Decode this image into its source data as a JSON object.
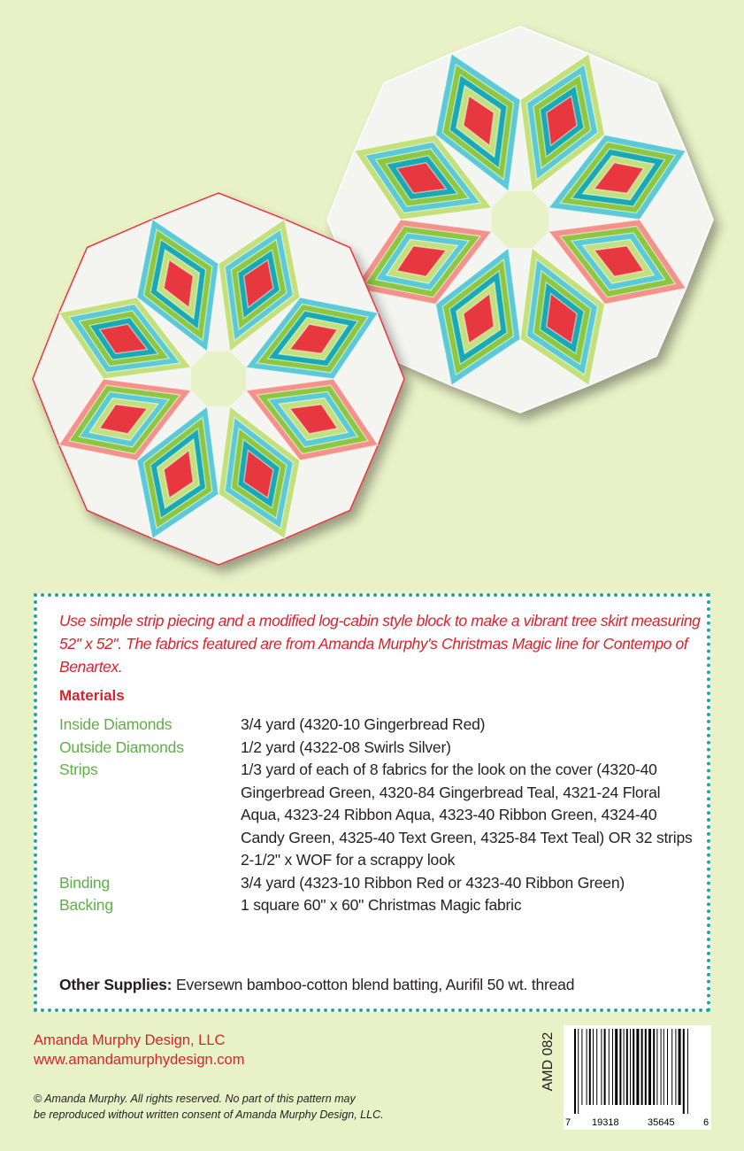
{
  "colors": {
    "background": "#e9f1c6",
    "accent_red": "#d9232c",
    "label_green": "#5fae47",
    "border_teal": "#1aa89c",
    "fabric_red": "#e8383f",
    "fabric_aqua": "#5ccad6",
    "fabric_teal": "#19a9b5",
    "fabric_green": "#8dc63f",
    "fabric_lightgreen": "#c3e07a",
    "fabric_pink": "#f3928a",
    "fabric_white": "#f4f4f1"
  },
  "images": [
    "tree-skirt-quilt-front",
    "tree-skirt-quilt-back"
  ],
  "intro": "Use simple strip piecing and a modified log-cabin style block to make a vibrant tree skirt measuring 52\" x 52\".  The fabrics featured are from Amanda Murphy's Christmas Magic line for Contempo of Benartex.",
  "materials": {
    "heading": "Materials",
    "rows": [
      {
        "label": "Inside Diamonds",
        "value": "3/4 yard (4320-10 Gingerbread Red)"
      },
      {
        "label": "Outside Diamonds",
        "value": "1/2 yard (4322-08 Swirls Silver)"
      },
      {
        "label": "Strips",
        "value": "1/3 yard of each of 8 fabrics for the look on the cover (4320-40 Gingerbread Green, 4320-84 Gingerbread Teal, 4321-24 Floral Aqua, 4323-24 Ribbon Aqua, 4323-40 Ribbon Green, 4324-40 Candy Green, 4325-40 Text Green, 4325-84 Text Teal) OR 32 strips 2-1/2\" x WOF for a scrappy look"
      },
      {
        "label": "Binding",
        "value": "3/4 yard (4323-10 Ribbon Red or 4323-40 Ribbon Green)"
      },
      {
        "label": "Backing",
        "value": "1 square 60\" x 60\" Christmas Magic fabric"
      }
    ],
    "other_label": "Other Supplies:",
    "other_value": " Eversewn bamboo-cotton blend batting, Aurifil 50 wt. thread"
  },
  "footer": {
    "company": "Amanda Murphy Design, LLC",
    "website": "www.amandamurphydesign.com",
    "copyright_line1": "© Amanda Murphy.  All rights reserved.  No part of this pattern may",
    "copyright_line2": "be reproduced without written consent of Amanda Murphy Design, LLC.",
    "sku": "AMD 082",
    "barcode_digits": [
      "7",
      "19318",
      "35645",
      "6"
    ]
  }
}
